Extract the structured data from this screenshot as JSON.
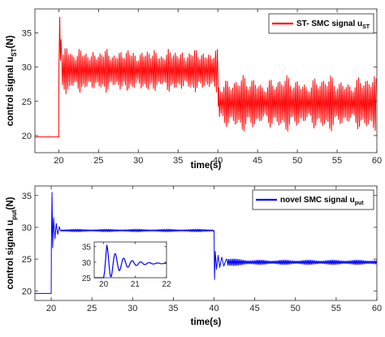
{
  "chart_data": [
    {
      "type": "line",
      "xlabel": "time(s)",
      "ylabel": "control signal u",
      "ylabel_sub": "ST",
      "ylabel_unit": "(N)",
      "xlim": [
        17,
        60
      ],
      "ylim": [
        17.5,
        38.5
      ],
      "xticks": [
        20,
        25,
        30,
        35,
        40,
        45,
        50,
        55,
        60
      ],
      "yticks": [
        20,
        25,
        30,
        35
      ],
      "legend": {
        "position": "top-right",
        "text": "ST- SMC  signal u",
        "sub": "ST"
      },
      "color": "#ff0000",
      "series": [
        {
          "name": "ST- SMC  signal u_ST",
          "segments": [
            {
              "t_start": 17,
              "t_end": 20,
              "value": 19.8
            },
            {
              "t_start": 20,
              "t_end": 20.3,
              "peak": 37.3
            },
            {
              "t_start": 20.3,
              "t_end": 40,
              "mean": 29.5,
              "band_low": 26.9,
              "band_high": 32.2
            },
            {
              "t_start": 40,
              "t_end": 60,
              "mean": 24.8,
              "band_low": 21.2,
              "band_high": 28.0
            }
          ]
        }
      ]
    },
    {
      "type": "line",
      "xlabel": "time(s)",
      "ylabel": "control signal u",
      "ylabel_sub": "put",
      "ylabel_unit": "(N)",
      "xlim": [
        18,
        60
      ],
      "ylim": [
        18.5,
        36.5
      ],
      "xticks": [
        20,
        25,
        30,
        35,
        40,
        45,
        50,
        55,
        60
      ],
      "yticks": [
        20,
        25,
        30,
        35
      ],
      "legend": {
        "position": "top-right",
        "text": "novel SMC  signal u",
        "sub": "put"
      },
      "color": "#0000ff",
      "series": [
        {
          "name": "novel SMC  signal u_put",
          "segments": [
            {
              "t_start": 18,
              "t_end": 20,
              "value": 19.6
            },
            {
              "t_start": 20,
              "t_end": 20.3,
              "peak": 35.5
            },
            {
              "t_start": 20.3,
              "t_end": 40,
              "mean": 29.5
            },
            {
              "t_start": 40,
              "t_end": 40.2,
              "dip": 21.8
            },
            {
              "t_start": 40.2,
              "t_end": 60,
              "mean": 24.5
            }
          ]
        }
      ],
      "inset": {
        "xlim": [
          19.7,
          22
        ],
        "ylim": [
          25,
          36.5
        ],
        "xticks": [
          20,
          21,
          22
        ],
        "yticks": [
          25,
          30,
          35
        ],
        "peak": 35.5,
        "settle": 29.6
      }
    }
  ]
}
